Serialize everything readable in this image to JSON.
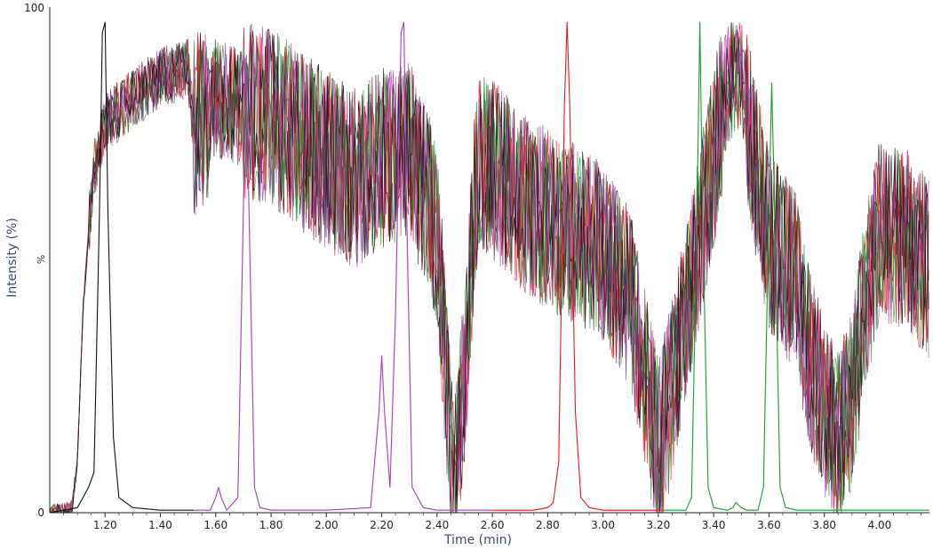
{
  "chart_data": {
    "type": "line",
    "title": "",
    "xlabel": "Time (min)",
    "ylabel": "Intensity (%)",
    "y_mid_label": "%",
    "xlim": [
      1.0,
      4.18
    ],
    "ylim": [
      0,
      100
    ],
    "x_ticks": [
      "1.20",
      "1.40",
      "1.60",
      "1.80",
      "2.00",
      "2.20",
      "2.40",
      "2.60",
      "2.80",
      "3.00",
      "3.20",
      "3.40",
      "3.60",
      "3.80",
      "4.00"
    ],
    "y_tick_labels": [
      "0",
      "100"
    ],
    "grid": false,
    "legend": "none",
    "colors": {
      "black": "#111111",
      "red": "#e8161b",
      "green": "#1f9a2a",
      "purple": "#a23fb4",
      "darkred": "#8a0f2b"
    },
    "background_envelope": {
      "x": [
        1.0,
        1.08,
        1.1,
        1.12,
        1.14,
        1.16,
        1.2,
        1.3,
        1.4,
        1.5,
        1.52,
        1.6,
        1.7,
        1.8,
        1.9,
        2.0,
        2.1,
        2.2,
        2.3,
        2.4,
        2.44,
        2.46,
        2.5,
        2.54,
        2.56,
        2.6,
        2.7,
        2.8,
        2.9,
        3.0,
        3.1,
        3.15,
        3.2,
        3.25,
        3.3,
        3.4,
        3.45,
        3.5,
        3.55,
        3.6,
        3.7,
        3.75,
        3.8,
        3.85,
        3.9,
        3.95,
        4.0,
        4.1,
        4.18
      ],
      "y": [
        0,
        1,
        10,
        40,
        55,
        68,
        77,
        82,
        86,
        88,
        76,
        82,
        80,
        78,
        74,
        70,
        66,
        70,
        72,
        56,
        20,
        3,
        28,
        65,
        70,
        68,
        62,
        58,
        55,
        52,
        42,
        28,
        12,
        25,
        40,
        70,
        85,
        88,
        68,
        54,
        45,
        30,
        20,
        14,
        22,
        42,
        56,
        54,
        48
      ]
    },
    "series": [
      {
        "color": "black",
        "x": [
          1.0,
          1.1,
          1.12,
          1.14,
          1.16,
          1.18,
          1.19,
          1.2,
          1.21,
          1.23,
          1.25,
          1.3,
          1.4,
          1.5,
          1.52
        ],
        "y": [
          0,
          1,
          3,
          5,
          8,
          60,
          95,
          97,
          60,
          15,
          3,
          1,
          0.5,
          0.5,
          0.5
        ]
      },
      {
        "color": "purple",
        "x": [
          1.52,
          1.58,
          1.6,
          1.61,
          1.62,
          1.64,
          1.68,
          1.7,
          1.71,
          1.72,
          1.74,
          1.76,
          1.8,
          2.0,
          2.16,
          2.19,
          2.2,
          2.21,
          2.23,
          2.25,
          2.27,
          2.28,
          2.29,
          2.31,
          2.35,
          2.4,
          2.45,
          2.6
        ],
        "y": [
          0.5,
          0.5,
          3,
          5,
          3,
          0.5,
          3,
          60,
          90,
          60,
          5,
          1,
          0.5,
          0.5,
          1,
          20,
          31,
          20,
          5,
          40,
          95,
          97,
          60,
          5,
          1,
          0.5,
          0.5,
          0.5
        ]
      },
      {
        "color": "red",
        "x": [
          2.6,
          2.75,
          2.8,
          2.82,
          2.84,
          2.86,
          2.87,
          2.88,
          2.9,
          2.92,
          2.95,
          3.0,
          3.1,
          3.2,
          3.22
        ],
        "y": [
          0.5,
          0.5,
          1,
          2,
          10,
          80,
          97,
          80,
          20,
          3,
          1,
          0.5,
          0.5,
          0.5,
          0.5
        ]
      },
      {
        "color": "green",
        "x": [
          3.22,
          3.3,
          3.32,
          3.34,
          3.35,
          3.36,
          3.38,
          3.4,
          3.45,
          3.47,
          3.48,
          3.5,
          3.52,
          3.56,
          3.58,
          3.6,
          3.61,
          3.62,
          3.64,
          3.66,
          3.7,
          4.0,
          4.18
        ],
        "y": [
          0.5,
          0.5,
          3,
          60,
          97,
          60,
          5,
          1,
          0.5,
          1,
          2,
          1,
          0.5,
          0.5,
          5,
          60,
          85,
          60,
          5,
          1,
          0.5,
          0.5,
          0.5
        ]
      }
    ]
  }
}
